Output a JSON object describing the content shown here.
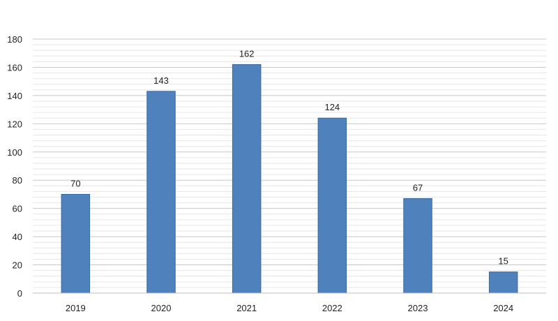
{
  "chart_data": {
    "type": "bar",
    "categories": [
      "2019",
      "2020",
      "2021",
      "2022",
      "2023",
      "2024"
    ],
    "values": [
      70,
      143,
      162,
      124,
      67,
      15
    ],
    "data_labels": [
      "70",
      "143",
      "162",
      "124",
      "67",
      "15"
    ],
    "yticks": [
      "0",
      "20",
      "40",
      "60",
      "80",
      "100",
      "120",
      "140",
      "160",
      "180"
    ],
    "ylim": [
      0,
      180
    ],
    "major_step": 20,
    "minor_step": 4,
    "grid": true,
    "legend": "none",
    "bar_color": "#4f81bd",
    "bar_edge_color": "#3a6a9e",
    "major_grid_color": "#c8c8c8",
    "minor_grid_color": "#e6e6e6",
    "axis_color": "#bfbfbf"
  }
}
